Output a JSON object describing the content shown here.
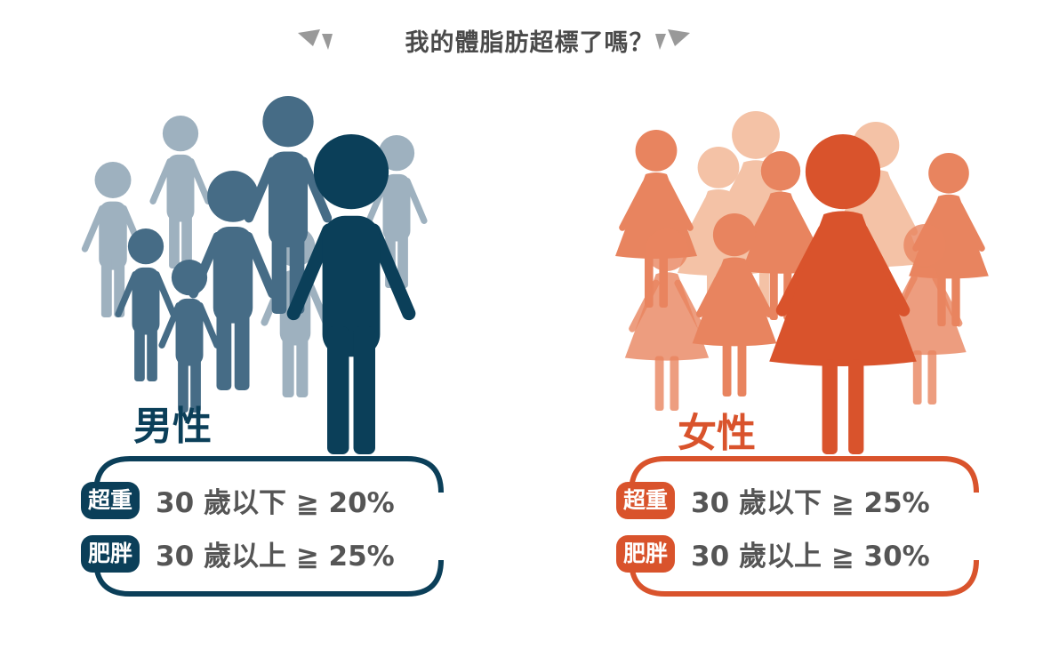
{
  "title": "我的體脂肪超標了嗎？",
  "colors": {
    "male_dark": "#0b3f59",
    "male_mid": "#466c86",
    "male_light": "#9eb1bf",
    "female_dark": "#d9532c",
    "female_mid": "#e8845f",
    "female_light": "#f4c2a6",
    "text": "#555555",
    "title_arrows": "#999999"
  },
  "male": {
    "label": "男性",
    "rows": [
      {
        "badge": "超重",
        "text": "30 歲以下 ≧ 20%"
      },
      {
        "badge": "肥胖",
        "text": "30 歲以上 ≧ 25%"
      }
    ]
  },
  "female": {
    "label": "女性",
    "rows": [
      {
        "badge": "超重",
        "text": "30 歲以下 ≧ 25%"
      },
      {
        "badge": "肥胖",
        "text": "30 歲以上 ≧ 30%"
      }
    ]
  }
}
